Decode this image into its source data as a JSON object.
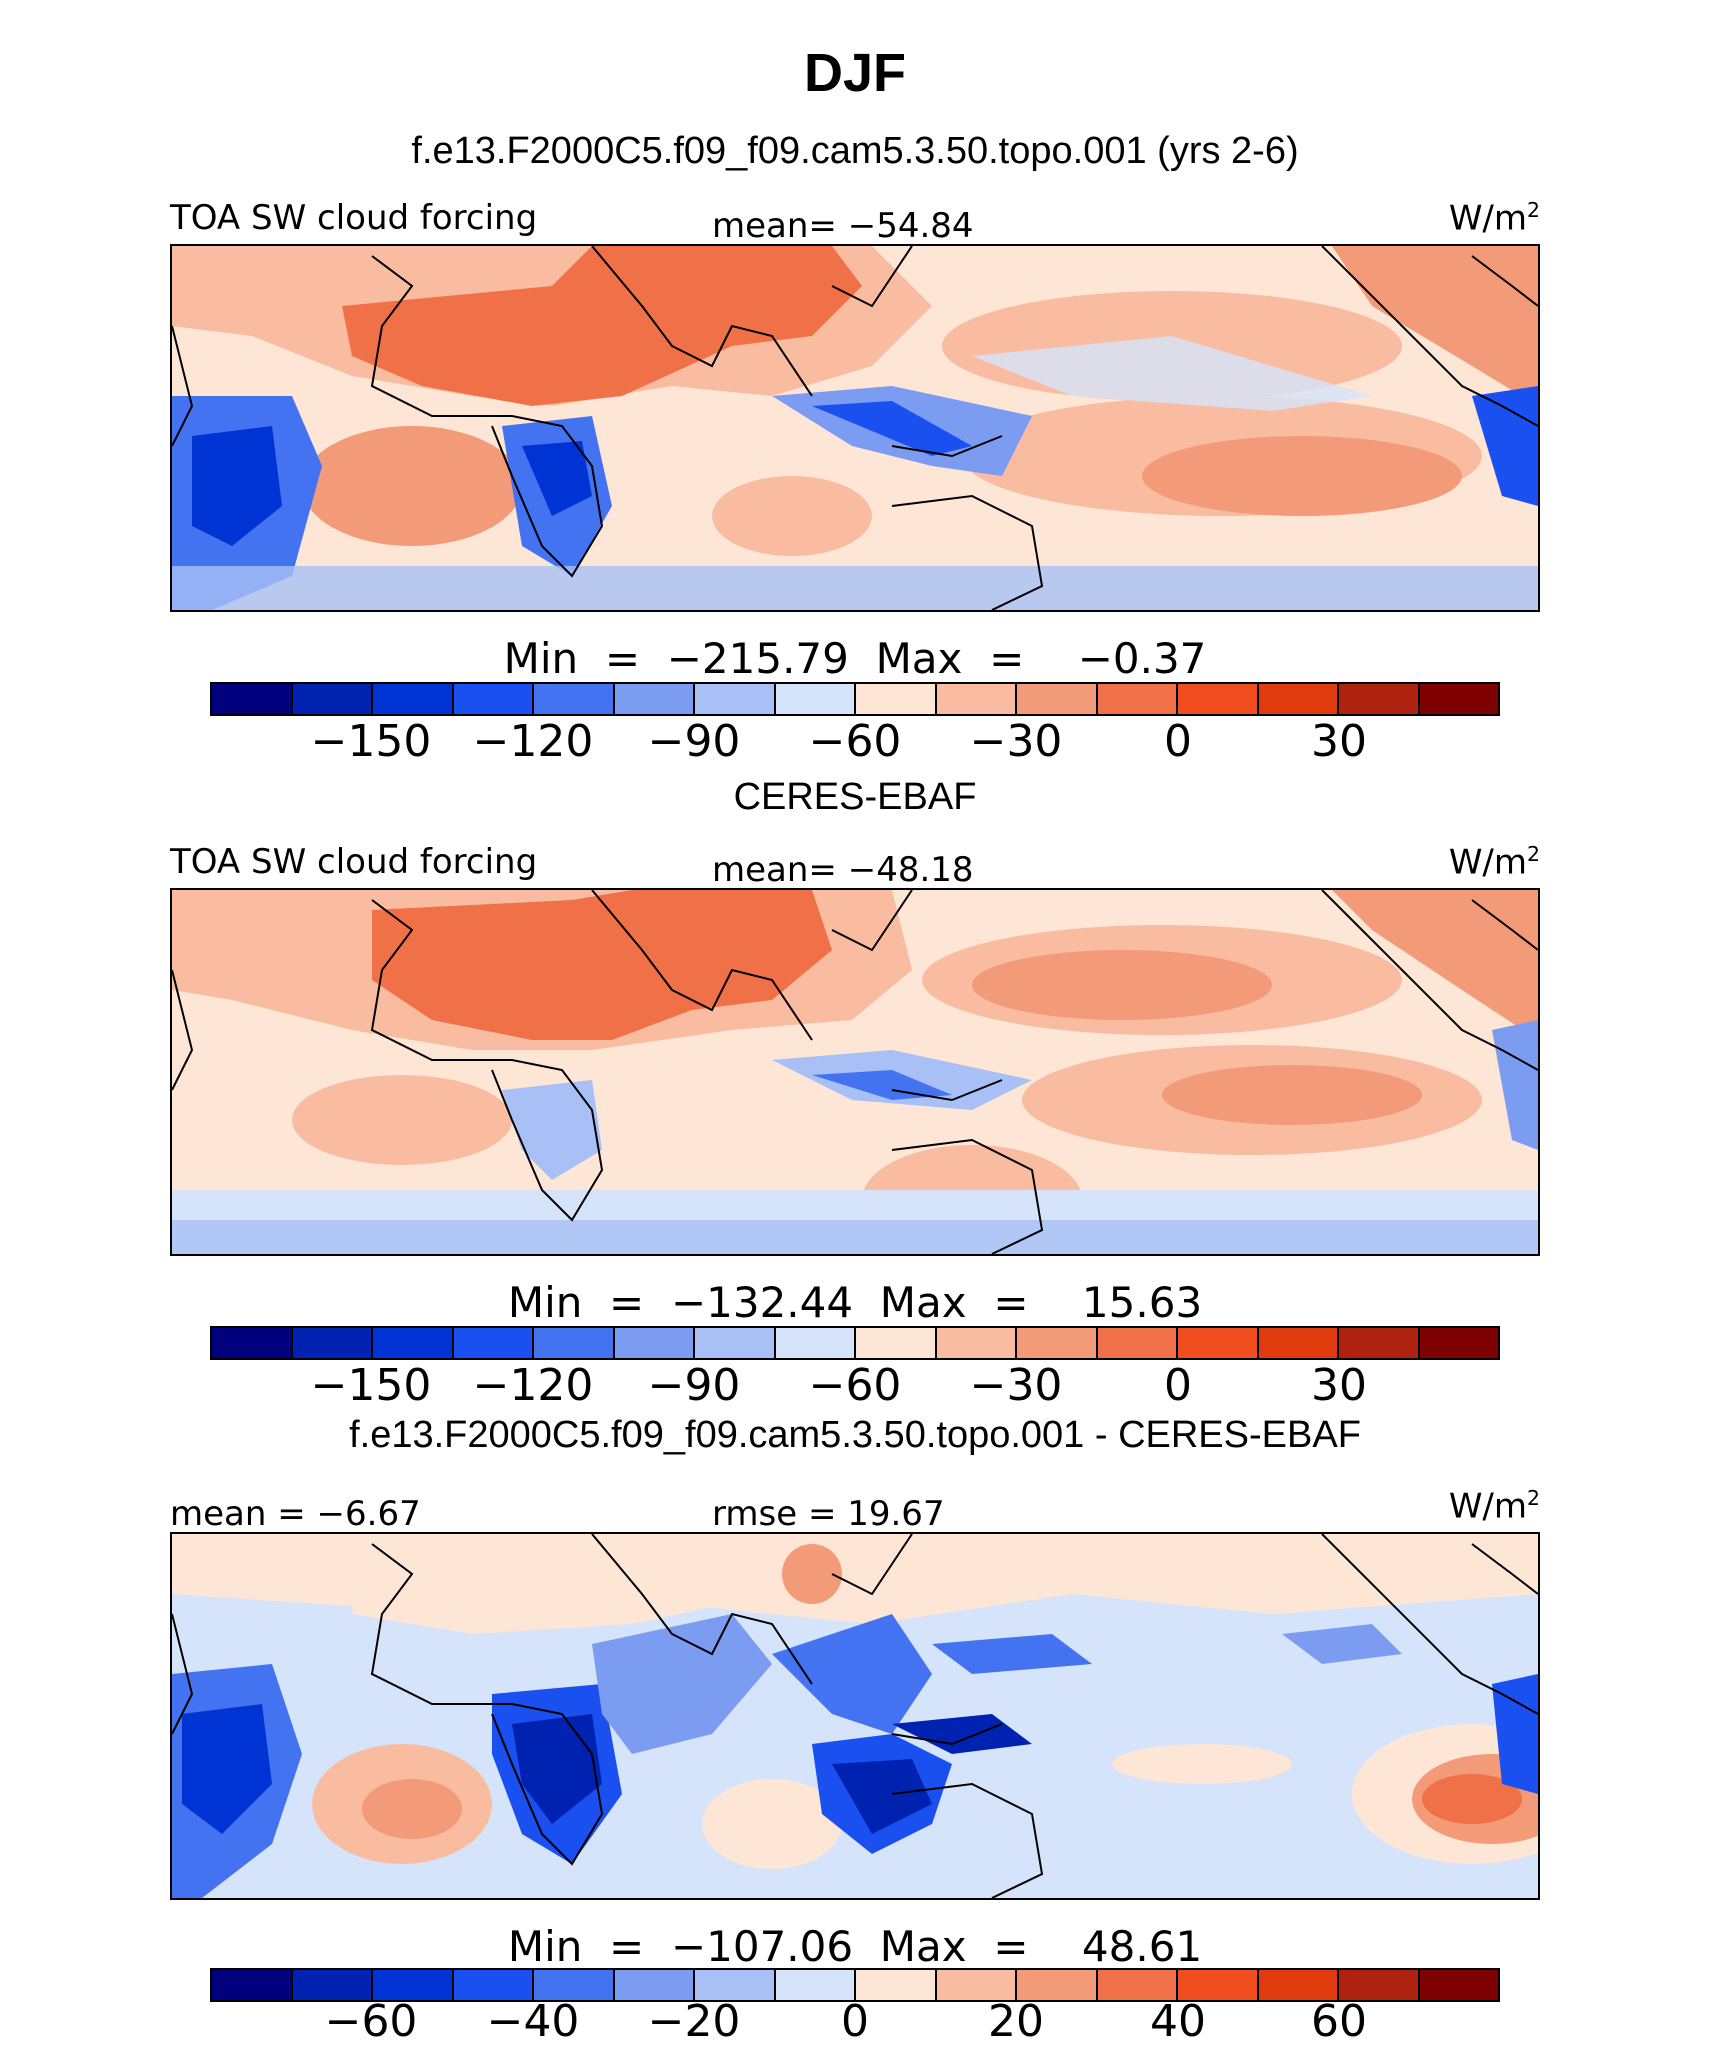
{
  "season": "DJF",
  "colors": [
    "#00007f",
    "#0022b0",
    "#0033d4",
    "#1a4ff0",
    "#4373f0",
    "#7c9cf2",
    "#a8c0f5",
    "#d6e4fb",
    "#fde6d6",
    "#f9bca0",
    "#f39a78",
    "#f07148",
    "#f04d1f",
    "#e03a0f",
    "#b02210",
    "#7f0000"
  ],
  "land_outline_color": "#000000",
  "panels": [
    {
      "id": "model",
      "title": "f.e13.F2000C5.f09_f09.cam5.3.50.topo.001 (yrs 2-6)",
      "left_label": "TOA SW cloud forcing",
      "center_label": "mean= −54.84",
      "units": "W/m",
      "units_sup": "2",
      "minmax": "Min  =  −215.79  Max  =    −0.37",
      "ticks": [
        "−150",
        "−120",
        "−90",
        "−60",
        "−30",
        "0",
        "30"
      ]
    },
    {
      "id": "obs",
      "title": "CERES-EBAF",
      "left_label": "TOA SW cloud forcing",
      "center_label": "mean= −48.18",
      "units": "W/m",
      "units_sup": "2",
      "minmax": "Min  =  −132.44  Max  =    15.63",
      "ticks": [
        "−150",
        "−120",
        "−90",
        "−60",
        "−30",
        "0",
        "30"
      ]
    },
    {
      "id": "diff",
      "title": "f.e13.F2000C5.f09_f09.cam5.3.50.topo.001 - CERES-EBAF",
      "left_label": "mean  =   −6.67",
      "center_label": "rmse  =   19.67",
      "units": "W/m",
      "units_sup": "2",
      "minmax": "Min  =  −107.06  Max  =    48.61",
      "ticks": [
        "−60",
        "−40",
        "−20",
        "0",
        "20",
        "40",
        "60"
      ]
    }
  ]
}
